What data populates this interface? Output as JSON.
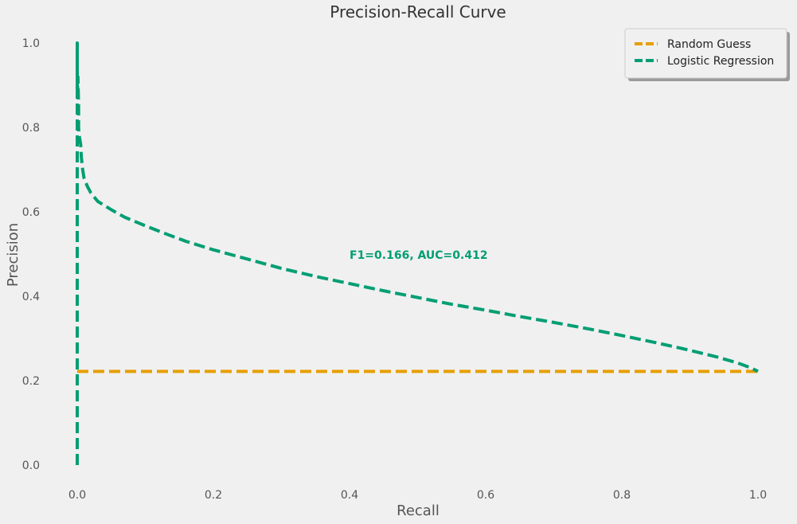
{
  "chart_data": {
    "type": "line",
    "title": "Precision-Recall Curve",
    "xlabel": "Recall",
    "ylabel": "Precision",
    "xlim": [
      -0.05,
      1.05
    ],
    "ylim": [
      -0.03,
      1.03
    ],
    "xticks": [
      0.0,
      0.2,
      0.4,
      0.6,
      0.8,
      1.0
    ],
    "yticks": [
      0.0,
      0.2,
      0.4,
      0.6,
      0.8,
      1.0
    ],
    "x_tick_labels": [
      "0.0",
      "0.2",
      "0.4",
      "0.6",
      "0.8",
      "1.0"
    ],
    "y_tick_labels": [
      "0.0",
      "0.2",
      "0.4",
      "0.6",
      "0.8",
      "1.0"
    ],
    "grid": false,
    "legend_position": "top-right",
    "series": [
      {
        "name": "Random Guess",
        "color": "#e69f00",
        "style": "dashed",
        "x": [
          0.0,
          1.0
        ],
        "y": [
          0.222,
          0.222
        ]
      },
      {
        "name": "Logistic Regression",
        "color": "#009e73",
        "style": "dashed",
        "x": [
          0.0,
          0.0,
          0.0,
          0.0,
          0.0,
          0.0,
          0.0,
          0.0,
          0.001,
          0.002,
          0.002,
          0.003,
          0.004,
          0.005,
          0.006,
          0.008,
          0.01,
          0.015,
          0.02,
          0.03,
          0.04,
          0.05,
          0.07,
          0.1,
          0.13,
          0.16,
          0.2,
          0.25,
          0.3,
          0.35,
          0.4,
          0.45,
          0.5,
          0.55,
          0.6,
          0.65,
          0.7,
          0.75,
          0.8,
          0.85,
          0.9,
          0.94,
          0.97,
          0.99,
          1.0
        ],
        "y": [
          0.0,
          0.3,
          0.5,
          0.7,
          0.9,
          1.0,
          0.94,
          0.87,
          0.92,
          0.85,
          0.8,
          0.78,
          0.77,
          0.76,
          0.73,
          0.7,
          0.68,
          0.66,
          0.645,
          0.625,
          0.615,
          0.605,
          0.587,
          0.567,
          0.548,
          0.53,
          0.51,
          0.488,
          0.466,
          0.447,
          0.43,
          0.413,
          0.397,
          0.381,
          0.367,
          0.352,
          0.338,
          0.323,
          0.307,
          0.29,
          0.272,
          0.256,
          0.242,
          0.23,
          0.222
        ]
      }
    ],
    "annotations": [
      {
        "text": "F1=0.166, AUC=0.412",
        "x": 0.4,
        "y": 0.5,
        "color": "#009e73"
      }
    ]
  }
}
